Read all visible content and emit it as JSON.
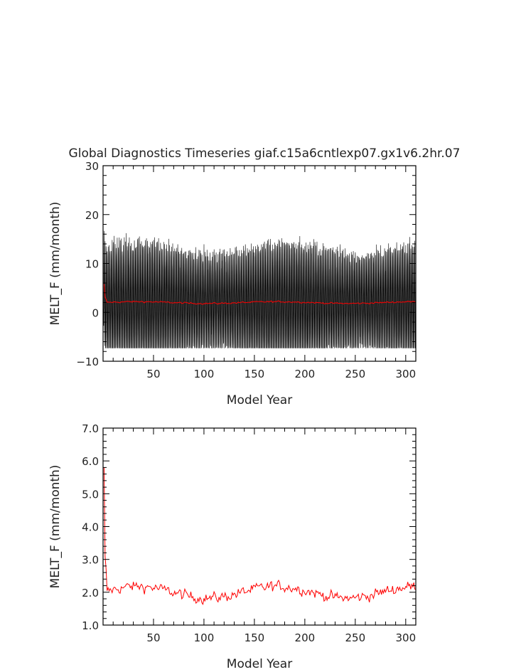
{
  "title": "Global Diagnostics Timeseries giaf.c15a6cntlexp07.gx1v6.2hr.07",
  "colors": {
    "monthly": "#000000",
    "annual": "#ff0000",
    "axis": "#000000",
    "text": "#222222"
  },
  "chart_data": [
    {
      "type": "line",
      "xlabel": "Model Year",
      "ylabel": "MELT_F (mm/month)",
      "xlim": [
        0,
        310
      ],
      "ylim": [
        -10,
        30
      ],
      "xticks": [
        50,
        100,
        150,
        200,
        250,
        300
      ],
      "yticks": [
        -10,
        0,
        10,
        20,
        30
      ],
      "ytick_labels": [
        "−10",
        "0",
        "10",
        "20",
        "30"
      ],
      "grid": false,
      "series": [
        {
          "role": "monthly",
          "color": "#000000",
          "approx_range": [
            -7,
            21
          ],
          "annual_cycle_amplitude": 11,
          "start_peak": 17
        },
        {
          "role": "annual",
          "color": "#ff0000",
          "initial": 5.8,
          "mean": 2.0
        }
      ]
    },
    {
      "type": "line",
      "xlabel": "Model Year",
      "ylabel": "MELT_F (mm/month)",
      "xlim": [
        0,
        310
      ],
      "ylim": [
        1.0,
        7.0
      ],
      "xticks": [
        50,
        100,
        150,
        200,
        250,
        300
      ],
      "yticks": [
        1.0,
        2.0,
        3.0,
        4.0,
        5.0,
        6.0,
        7.0
      ],
      "ytick_labels": [
        "1.0",
        "2.0",
        "3.0",
        "4.0",
        "5.0",
        "6.0",
        "7.0"
      ],
      "grid": false,
      "series": [
        {
          "role": "annual",
          "color": "#ff0000",
          "initial": 5.8,
          "mean": 2.0,
          "approx_range": [
            1.2,
            2.5
          ]
        }
      ]
    }
  ]
}
